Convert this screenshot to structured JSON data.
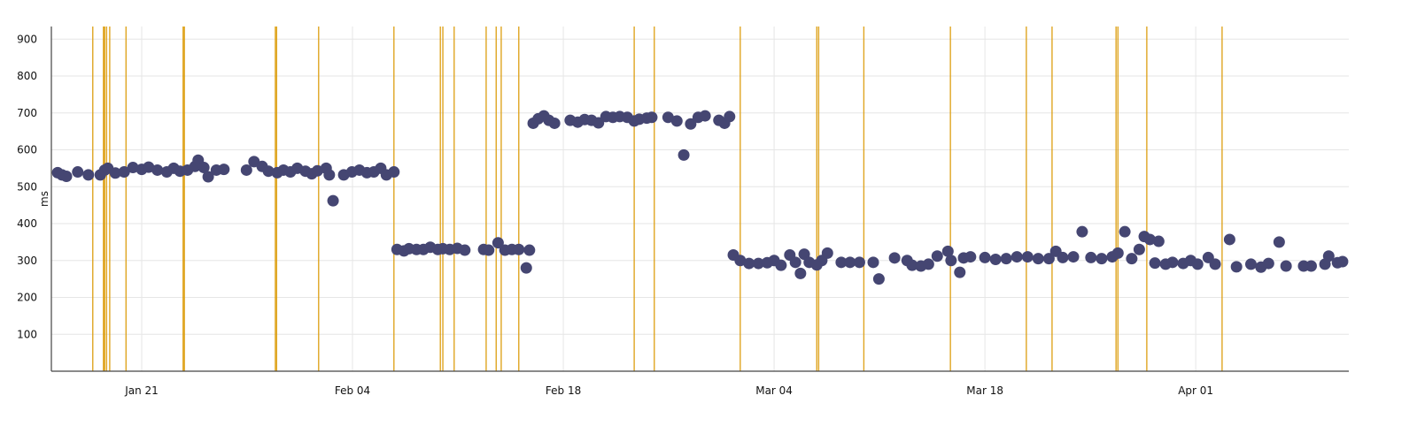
{
  "chart_data": {
    "type": "scatter",
    "title": "",
    "xlabel": "",
    "ylabel": "ms",
    "xlim": [
      "01-15 00",
      "04-11 04"
    ],
    "ylim": [
      0,
      930
    ],
    "grid": true,
    "legend": "none",
    "x_ticks": [
      {
        "label": "Jan 21",
        "at": "01-21 00"
      },
      {
        "label": "Feb 04",
        "at": "02-04 00"
      },
      {
        "label": "Feb 18",
        "at": "02-18 00"
      },
      {
        "label": "Mar 04",
        "at": "03-04 00"
      },
      {
        "label": "Mar 18",
        "at": "03-18 00"
      },
      {
        "label": "Apr 01",
        "at": "04-01 00"
      }
    ],
    "y_ticks": [
      {
        "label": "100",
        "at": 100
      },
      {
        "label": "200",
        "at": 200
      },
      {
        "label": "300",
        "at": 300
      },
      {
        "label": "400",
        "at": 400
      },
      {
        "label": "500",
        "at": 500
      },
      {
        "label": "600",
        "at": 600
      },
      {
        "label": "700",
        "at": 700
      },
      {
        "label": "800",
        "at": 800
      },
      {
        "label": "900",
        "at": 900
      }
    ],
    "colors": {
      "points": "#454672",
      "event_lines": "#dc9c0a",
      "grid": "#e6e6e6",
      "axis": "#444444"
    },
    "event_lines": [
      "01-17 18",
      "01-18 11",
      "01-18 13",
      "01-18 16",
      "01-18 21",
      "01-19 23",
      "01-23 18",
      "01-23 20",
      "01-29 21",
      "01-29 23",
      "02-01 18",
      "02-06 18",
      "02-09 20",
      "02-10 00",
      "02-10 18",
      "02-12 21",
      "02-13 13",
      "02-13 21",
      "02-15 01",
      "02-22 17",
      "02-24 01",
      "03-01 18",
      "03-06 20",
      "03-06 23",
      "03-09 23",
      "03-15 17",
      "03-20 18",
      "03-22 11",
      "03-26 17",
      "03-26 20",
      "03-28 18",
      "04-02 18"
    ],
    "points": [
      [
        "01-15 10",
        538
      ],
      [
        "01-15 17",
        532
      ],
      [
        "01-16 00",
        528
      ],
      [
        "01-16 18",
        540
      ],
      [
        "01-17 11",
        532
      ],
      [
        "01-18 06",
        532
      ],
      [
        "01-18 13",
        545
      ],
      [
        "01-18 18",
        550
      ],
      [
        "01-19 06",
        537
      ],
      [
        "01-19 20",
        540
      ],
      [
        "01-20 10",
        552
      ],
      [
        "01-21 00",
        547
      ],
      [
        "01-21 11",
        553
      ],
      [
        "01-22 01",
        545
      ],
      [
        "01-22 16",
        540
      ],
      [
        "01-23 03",
        550
      ],
      [
        "01-23 13",
        542
      ],
      [
        "01-24 01",
        545
      ],
      [
        "01-24 13",
        555
      ],
      [
        "01-24 18",
        572
      ],
      [
        "01-25 03",
        552
      ],
      [
        "01-25 10",
        527
      ],
      [
        "01-25 23",
        545
      ],
      [
        "01-26 11",
        547
      ],
      [
        "01-27 23",
        545
      ],
      [
        "01-28 11",
        568
      ],
      [
        "01-29 00",
        555
      ],
      [
        "01-29 10",
        542
      ],
      [
        "01-30 00",
        538
      ],
      [
        "01-30 10",
        545
      ],
      [
        "01-30 21",
        540
      ],
      [
        "01-31 08",
        550
      ],
      [
        "01-31 21",
        542
      ],
      [
        "02-01 07",
        535
      ],
      [
        "02-01 16",
        543
      ],
      [
        "02-02 06",
        550
      ],
      [
        "02-02 11",
        532
      ],
      [
        "02-02 17",
        462
      ],
      [
        "02-03 10",
        532
      ],
      [
        "02-03 23",
        540
      ],
      [
        "02-04 11",
        545
      ],
      [
        "02-04 23",
        538
      ],
      [
        "02-05 10",
        540
      ],
      [
        "02-05 21",
        550
      ],
      [
        "02-06 06",
        532
      ],
      [
        "02-06 18",
        540
      ],
      [
        "02-06 23",
        330
      ],
      [
        "02-07 10",
        326
      ],
      [
        "02-07 18",
        332
      ],
      [
        "02-08 06",
        330
      ],
      [
        "02-08 17",
        330
      ],
      [
        "02-09 04",
        336
      ],
      [
        "02-09 16",
        330
      ],
      [
        "02-10 00",
        332
      ],
      [
        "02-10 11",
        330
      ],
      [
        "02-10 23",
        333
      ],
      [
        "02-11 11",
        328
      ],
      [
        "02-12 17",
        330
      ],
      [
        "02-13 01",
        328
      ],
      [
        "02-13 16",
        348
      ],
      [
        "02-14 03",
        328
      ],
      [
        "02-14 14",
        330
      ],
      [
        "02-15 01",
        330
      ],
      [
        "02-15 13",
        280
      ],
      [
        "02-15 18",
        328
      ],
      [
        "02-16 00",
        672
      ],
      [
        "02-16 08",
        684
      ],
      [
        "02-16 17",
        692
      ],
      [
        "02-17 01",
        680
      ],
      [
        "02-17 10",
        672
      ],
      [
        "02-18 11",
        680
      ],
      [
        "02-18 23",
        675
      ],
      [
        "02-19 10",
        682
      ],
      [
        "02-19 21",
        680
      ],
      [
        "02-20 08",
        673
      ],
      [
        "02-20 20",
        690
      ],
      [
        "02-21 07",
        688
      ],
      [
        "02-21 18",
        690
      ],
      [
        "02-22 06",
        688
      ],
      [
        "02-22 17",
        678
      ],
      [
        "02-23 01",
        683
      ],
      [
        "02-23 13",
        686
      ],
      [
        "02-23 21",
        688
      ],
      [
        "02-24 23",
        688
      ],
      [
        "02-25 13",
        678
      ],
      [
        "02-26 00",
        586
      ],
      [
        "02-26 11",
        670
      ],
      [
        "02-26 23",
        688
      ],
      [
        "02-27 10",
        692
      ],
      [
        "02-28 08",
        680
      ],
      [
        "02-28 17",
        672
      ],
      [
        "03-01 01",
        690
      ],
      [
        "03-01 07",
        315
      ],
      [
        "03-01 18",
        300
      ],
      [
        "03-02 08",
        292
      ],
      [
        "03-02 23",
        292
      ],
      [
        "03-03 13",
        294
      ],
      [
        "03-04 00",
        300
      ],
      [
        "03-04 11",
        287
      ],
      [
        "03-05 01",
        315
      ],
      [
        "03-05 10",
        295
      ],
      [
        "03-05 18",
        265
      ],
      [
        "03-06 00",
        317
      ],
      [
        "03-06 08",
        295
      ],
      [
        "03-06 20",
        288
      ],
      [
        "03-07 04",
        300
      ],
      [
        "03-07 13",
        320
      ],
      [
        "03-08 11",
        295
      ],
      [
        "03-09 01",
        295
      ],
      [
        "03-09 16",
        295
      ],
      [
        "03-10 14",
        295
      ],
      [
        "03-10 23",
        250
      ],
      [
        "03-12 00",
        307
      ],
      [
        "03-12 20",
        300
      ],
      [
        "03-13 04",
        287
      ],
      [
        "03-13 18",
        285
      ],
      [
        "03-14 06",
        290
      ],
      [
        "03-14 20",
        312
      ],
      [
        "03-15 13",
        325
      ],
      [
        "03-15 18",
        300
      ],
      [
        "03-16 08",
        268
      ],
      [
        "03-16 14",
        307
      ],
      [
        "03-17 01",
        310
      ],
      [
        "03-18 00",
        308
      ],
      [
        "03-18 17",
        303
      ],
      [
        "03-19 10",
        305
      ],
      [
        "03-20 03",
        310
      ],
      [
        "03-20 20",
        310
      ],
      [
        "03-21 13",
        305
      ],
      [
        "03-22 06",
        305
      ],
      [
        "03-22 17",
        325
      ],
      [
        "03-23 04",
        308
      ],
      [
        "03-23 21",
        310
      ],
      [
        "03-24 11",
        378
      ],
      [
        "03-25 01",
        308
      ],
      [
        "03-25 18",
        305
      ],
      [
        "03-26 11",
        310
      ],
      [
        "03-26 20",
        320
      ],
      [
        "03-27 07",
        378
      ],
      [
        "03-27 18",
        305
      ],
      [
        "03-28 06",
        330
      ],
      [
        "03-28 14",
        365
      ],
      [
        "03-28 23",
        357
      ],
      [
        "03-29 07",
        293
      ],
      [
        "03-29 13",
        352
      ],
      [
        "03-30 00",
        290
      ],
      [
        "03-30 11",
        295
      ],
      [
        "03-31 04",
        292
      ],
      [
        "03-31 16",
        300
      ],
      [
        "04-01 03",
        290
      ],
      [
        "04-01 20",
        308
      ],
      [
        "04-02 07",
        290
      ],
      [
        "04-03 06",
        357
      ],
      [
        "04-03 17",
        283
      ],
      [
        "04-04 16",
        290
      ],
      [
        "04-05 08",
        282
      ],
      [
        "04-05 20",
        292
      ],
      [
        "04-06 13",
        350
      ],
      [
        "04-07 00",
        285
      ],
      [
        "04-08 04",
        285
      ],
      [
        "04-08 16",
        285
      ],
      [
        "04-09 14",
        290
      ],
      [
        "04-09 20",
        312
      ],
      [
        "04-10 10",
        294
      ],
      [
        "04-10 18",
        297
      ]
    ]
  }
}
